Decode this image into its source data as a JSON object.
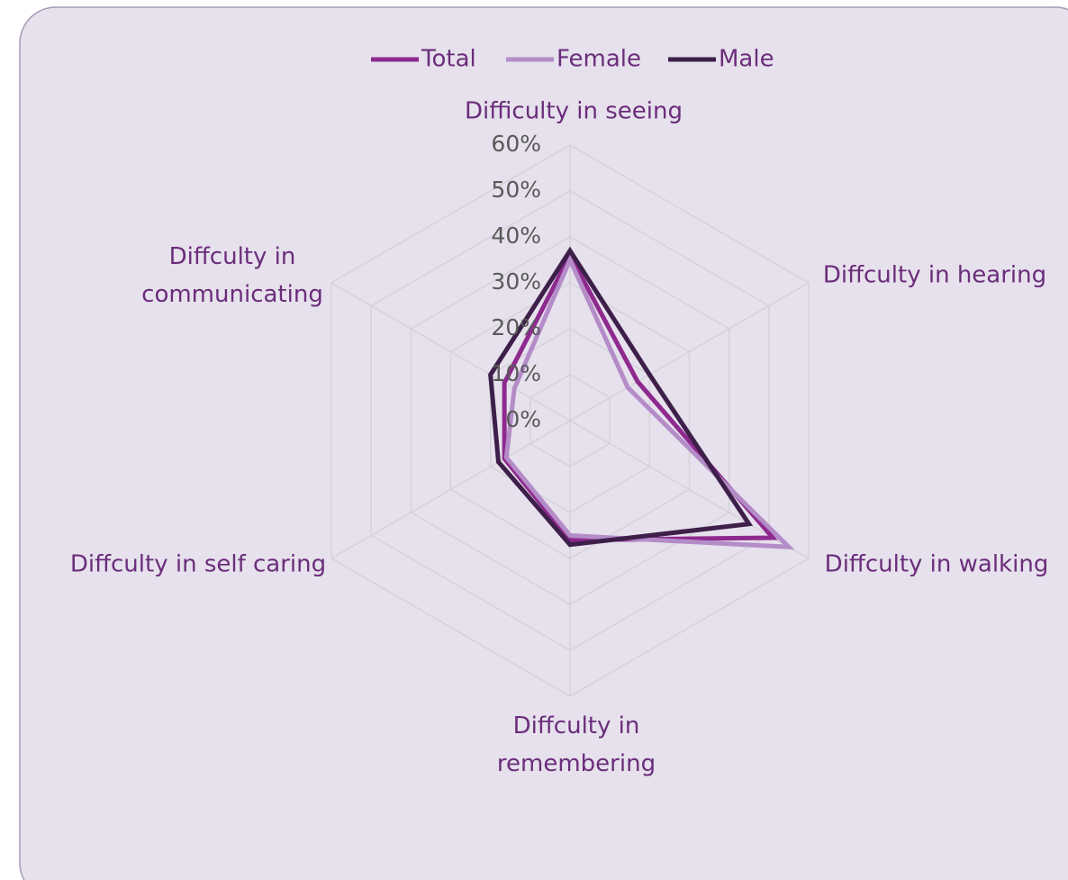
{
  "chart_data": {
    "type": "radar",
    "categories": [
      "Difficulty in seeing",
      "Diffculty in hearing",
      "Diffculty in walking",
      "Diffculty in\nremembering",
      "Diffculty in self caring",
      "Diffculty in\ncommunicating"
    ],
    "series": [
      {
        "name": "Total",
        "color": "#8e2a8e",
        "values": [
          36,
          17,
          51,
          26,
          16.5,
          16.5
        ]
      },
      {
        "name": "Female",
        "color": "#b48cc8",
        "values": [
          35,
          14.5,
          55,
          25,
          16,
          14
        ]
      },
      {
        "name": "Male",
        "color": "#3d1f4a",
        "values": [
          37,
          20,
          45,
          27,
          18,
          20
        ]
      }
    ],
    "rlim": [
      0,
      60
    ],
    "rticks": [
      {
        "value": 0,
        "label": "0%"
      },
      {
        "value": 10,
        "label": "10%"
      },
      {
        "value": 20,
        "label": "20%"
      },
      {
        "value": 30,
        "label": "30%"
      },
      {
        "value": 40,
        "label": "40%"
      },
      {
        "value": 50,
        "label": "50%"
      },
      {
        "value": 60,
        "label": "60%"
      }
    ],
    "grid": true,
    "legend": "top"
  }
}
